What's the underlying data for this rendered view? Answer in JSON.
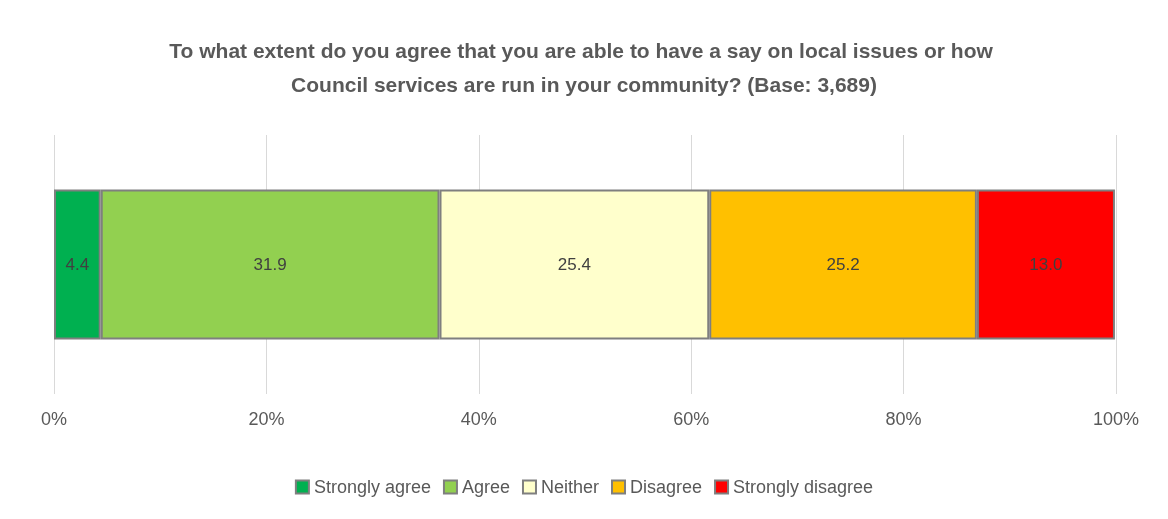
{
  "chart_data": {
    "type": "bar",
    "orientation": "horizontal",
    "stacked": true,
    "title": "To what extent do you agree that you are able to have a say on local issues or how Council services are run in your community? (Base: 3,689)",
    "categories": [
      null
    ],
    "series": [
      {
        "name": "Strongly agree",
        "color": "#00b050",
        "values": [
          4.4
        ],
        "value_labels": [
          "4.4"
        ]
      },
      {
        "name": "Agree",
        "color": "#92d050",
        "values": [
          31.9
        ],
        "value_labels": [
          "31.9"
        ]
      },
      {
        "name": "Neither",
        "color": "#ffffcc",
        "values": [
          25.4
        ],
        "value_labels": [
          "25.4"
        ]
      },
      {
        "name": "Disagree",
        "color": "#ffc000",
        "values": [
          25.2
        ],
        "value_labels": [
          "25.2"
        ]
      },
      {
        "name": "Strongly disagree",
        "color": "#ff0000",
        "values": [
          13.0
        ],
        "value_labels": [
          "13.0"
        ]
      }
    ],
    "xlim": [
      0,
      100
    ],
    "xticks": [
      {
        "value": 0,
        "label": "0%"
      },
      {
        "value": 20,
        "label": "20%"
      },
      {
        "value": 40,
        "label": "40%"
      },
      {
        "value": 60,
        "label": "60%"
      },
      {
        "value": 80,
        "label": "80%"
      },
      {
        "value": 100,
        "label": "100%"
      }
    ],
    "grid": "x",
    "legend": "bottom"
  }
}
